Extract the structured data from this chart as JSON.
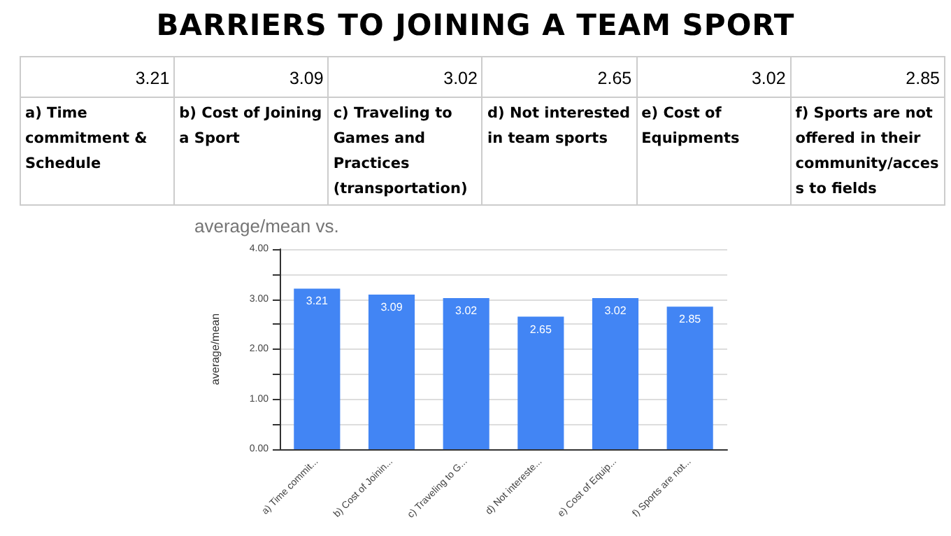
{
  "chart_data": [
    {
      "type": "other",
      "title": "BARRIERS TO JOINING A TEAM SPORT",
      "categories": [
        "a) Time commitment & Schedule",
        "b) Cost of Joining a Sport",
        "c) Traveling to Games and Practices (transportation)",
        "d) Not interested in team sports",
        "e) Cost of Equipments",
        "f) Sports are not offered in their community/access to fields"
      ],
      "values": [
        3.21,
        3.09,
        3.02,
        2.65,
        3.02,
        2.85
      ],
      "data_labels": true
    },
    {
      "type": "bar",
      "title": "average/mean vs.",
      "ylabel": "average/mean",
      "categories": [
        "a) Time commit...",
        "b) Cost of Joinin...",
        "c) Traveling to G...",
        "d) Not intereste...",
        "e) Cost of Equip...",
        "f) Sports are not..."
      ],
      "values": [
        3.21,
        3.09,
        3.02,
        2.65,
        3.02,
        2.85
      ],
      "color": "#4285f4",
      "ylim": [
        0,
        4
      ],
      "yticks": [
        {
          "value": 0,
          "label": "0.00"
        },
        {
          "value": 0.5,
          "label": null
        },
        {
          "value": 1,
          "label": "1.00"
        },
        {
          "value": 1.5,
          "label": null
        },
        {
          "value": 2,
          "label": "2.00"
        },
        {
          "value": 2.5,
          "label": null
        },
        {
          "value": 3,
          "label": "3.00"
        },
        {
          "value": 3.5,
          "label": null
        },
        {
          "value": 4,
          "label": "4.00"
        }
      ],
      "grid": "y",
      "data_labels": true
    }
  ]
}
